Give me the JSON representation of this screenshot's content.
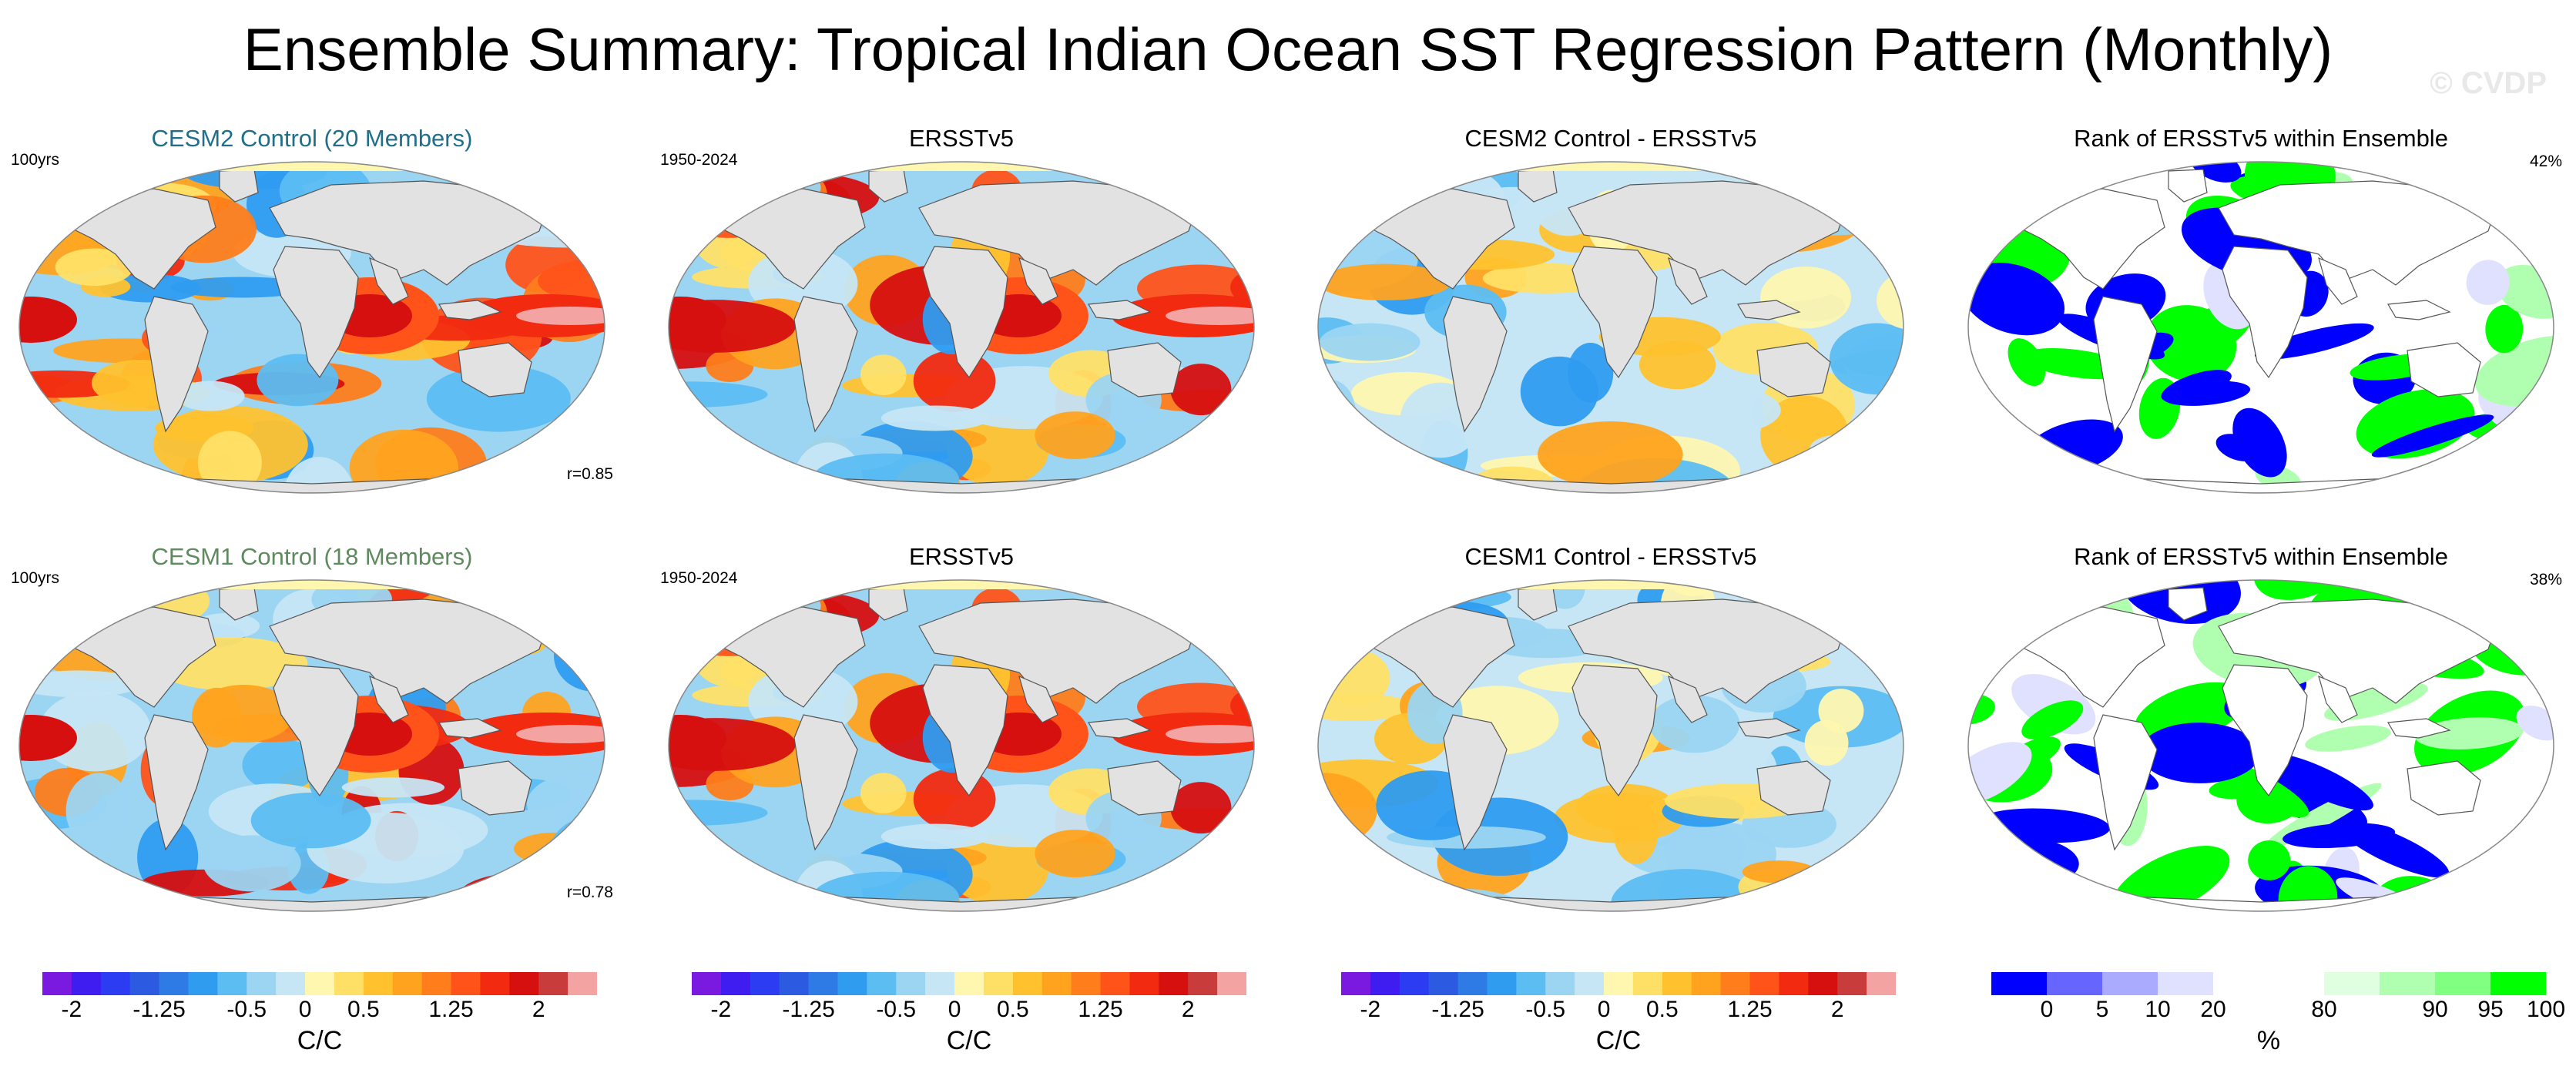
{
  "title": "Ensemble Summary: Tropical Indian Ocean SST Regression Pattern (Monthly)",
  "watermark": "© CVDP",
  "rows": [
    {
      "panels": [
        {
          "title": "CESM2 Control (20 Members)",
          "title_color": "#1f6f8b",
          "left_label": "100yrs",
          "br_label": "r=0.85",
          "type": "reg"
        },
        {
          "title": "ERSSTv5",
          "title_color": "#000000",
          "left_label": "1950-2024",
          "type": "reg"
        },
        {
          "title": "CESM2 Control - ERSSTv5",
          "title_color": "#000000",
          "type": "diff"
        },
        {
          "title": "Rank of ERSSTv5 within Ensemble",
          "title_color": "#000000",
          "right_label": "42%",
          "type": "rank"
        }
      ]
    },
    {
      "panels": [
        {
          "title": "CESM1 Control (18 Members)",
          "title_color": "#5f8a5f",
          "left_label": "100yrs",
          "br_label": "r=0.78",
          "type": "reg"
        },
        {
          "title": "ERSSTv5",
          "title_color": "#000000",
          "left_label": "1950-2024",
          "type": "reg"
        },
        {
          "title": "CESM1 Control - ERSSTv5",
          "title_color": "#000000",
          "type": "diff"
        },
        {
          "title": "Rank of ERSSTv5 within Ensemble",
          "title_color": "#000000",
          "right_label": "38%",
          "type": "rank"
        }
      ]
    }
  ],
  "colorbars": {
    "regression": {
      "label": "C/C",
      "ticks": [
        "-2",
        "-1.25",
        "-0.5",
        "0",
        "0.5",
        "1.25",
        "2"
      ],
      "colors": [
        "#7a1ae0",
        "#3f1df0",
        "#2b3cf2",
        "#2c5ae0",
        "#2f7be6",
        "#2f9cf0",
        "#5cbdf2",
        "#9bd5f2",
        "#c6e6f5",
        "#fff7b0",
        "#ffe066",
        "#ffc22e",
        "#ffa31f",
        "#ff7d1a",
        "#ff531a",
        "#f22a10",
        "#d60f0f",
        "#c83c3c",
        "#f4a3a3"
      ]
    },
    "rank": {
      "label": "%",
      "ticks": [
        "0",
        "5",
        "10",
        "20",
        "80",
        "90",
        "95",
        "100"
      ],
      "colors": [
        "#0000ff",
        "#6666ff",
        "#aaaaff",
        "#e0e0ff",
        "#ffffff",
        "#ffffff",
        "#e0ffe0",
        "#b0ffb0",
        "#80ff80",
        "#00ff00"
      ]
    }
  }
}
